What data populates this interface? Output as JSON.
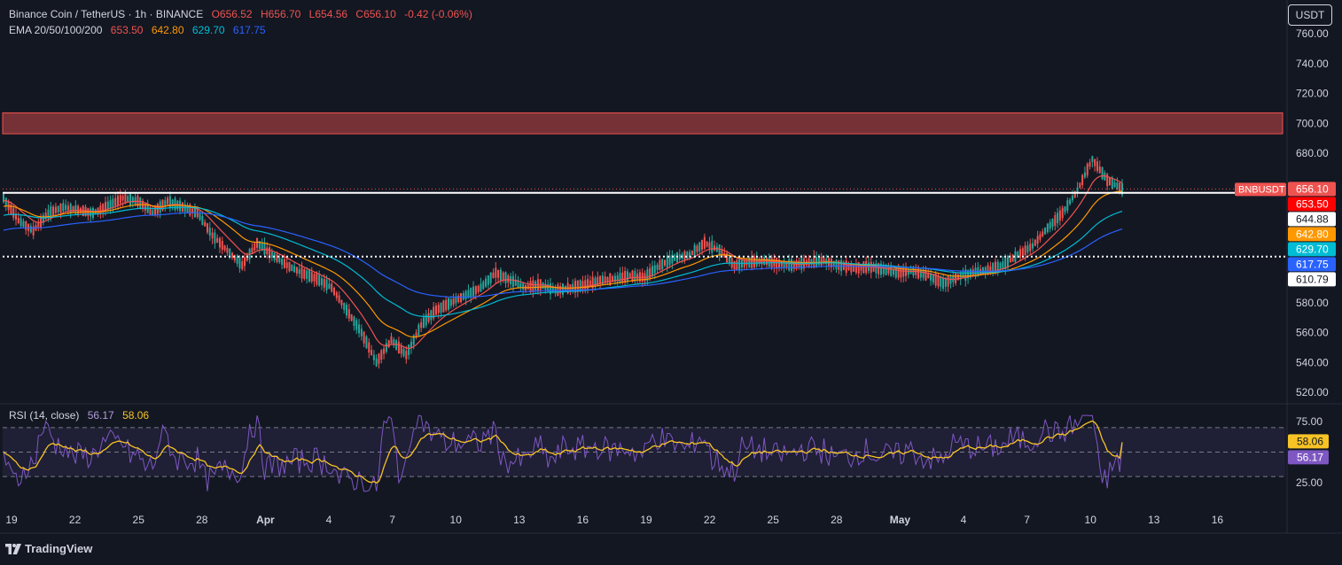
{
  "header": {
    "symbol": "Binance Coin / TetherUS · 1h · BINANCE",
    "open": "O656.52",
    "high": "H656.70",
    "low": "L654.56",
    "close": "C656.10",
    "change": "-0.42 (-0.06%)",
    "ema_label": "EMA 20/50/100/200",
    "ema_values": [
      "653.50",
      "642.80",
      "629.70",
      "617.75"
    ]
  },
  "unit_button": "USDT",
  "rsi_legend": {
    "label": "RSI (14, close)",
    "rsi": "56.17",
    "ma": "58.06"
  },
  "branding": "TradingView",
  "colors": {
    "background": "#131722",
    "up": "#26a69a",
    "down": "#ef5350",
    "ema20": "#ef5350",
    "ema50": "#ff9800",
    "ema100": "#00bcd4",
    "ema200": "#2962ff",
    "rsi": "#7e57c2",
    "rsi_ma": "#f7c325",
    "zone": "#ef5350"
  },
  "chart_data": [
    {
      "type": "candlestick",
      "pair": "BNBUSDT",
      "timeframe": "1h",
      "x_labels": [
        "19",
        "22",
        "25",
        "28",
        "Apr",
        "4",
        "7",
        "10",
        "13",
        "16",
        "19",
        "22",
        "25",
        "28",
        "May",
        "4",
        "7",
        "10",
        "13",
        "16"
      ],
      "y_ticks": [
        520,
        540,
        560,
        580,
        680,
        700,
        720,
        740,
        760
      ],
      "ylim": [
        515,
        765
      ],
      "resistance_zone": [
        693,
        707
      ],
      "horizontal_lines": [
        {
          "value": 653.5,
          "style": "solid",
          "color": "#ffffff"
        },
        {
          "value": 610.79,
          "style": "dotted",
          "color": "#ffffff"
        }
      ],
      "last_price_line": 656.1,
      "price_path": [
        {
          "x": 0,
          "y": 650
        },
        {
          "x": 1,
          "y": 635
        },
        {
          "x": 2,
          "y": 628
        },
        {
          "x": 3,
          "y": 640
        },
        {
          "x": 4,
          "y": 644
        },
        {
          "x": 5,
          "y": 642
        },
        {
          "x": 6,
          "y": 640
        },
        {
          "x": 7,
          "y": 645
        },
        {
          "x": 8,
          "y": 650
        },
        {
          "x": 9,
          "y": 648
        },
        {
          "x": 10,
          "y": 640
        },
        {
          "x": 11,
          "y": 648
        },
        {
          "x": 12,
          "y": 644
        },
        {
          "x": 13,
          "y": 640
        },
        {
          "x": 14,
          "y": 625
        },
        {
          "x": 15,
          "y": 615
        },
        {
          "x": 16,
          "y": 605
        },
        {
          "x": 17,
          "y": 620
        },
        {
          "x": 18,
          "y": 612
        },
        {
          "x": 19,
          "y": 605
        },
        {
          "x": 20,
          "y": 600
        },
        {
          "x": 21,
          "y": 596
        },
        {
          "x": 22,
          "y": 590
        },
        {
          "x": 23,
          "y": 575
        },
        {
          "x": 24,
          "y": 560
        },
        {
          "x": 25,
          "y": 540
        },
        {
          "x": 26,
          "y": 555
        },
        {
          "x": 27,
          "y": 545
        },
        {
          "x": 28,
          "y": 565
        },
        {
          "x": 29,
          "y": 575
        },
        {
          "x": 30,
          "y": 580
        },
        {
          "x": 31,
          "y": 585
        },
        {
          "x": 32,
          "y": 590
        },
        {
          "x": 33,
          "y": 600
        },
        {
          "x": 34,
          "y": 595
        },
        {
          "x": 35,
          "y": 590
        },
        {
          "x": 36,
          "y": 592
        },
        {
          "x": 37,
          "y": 588
        },
        {
          "x": 38,
          "y": 590
        },
        {
          "x": 39,
          "y": 592
        },
        {
          "x": 40,
          "y": 595
        },
        {
          "x": 41,
          "y": 596
        },
        {
          "x": 42,
          "y": 598
        },
        {
          "x": 43,
          "y": 597
        },
        {
          "x": 44,
          "y": 605
        },
        {
          "x": 45,
          "y": 610
        },
        {
          "x": 46,
          "y": 612
        },
        {
          "x": 47,
          "y": 620
        },
        {
          "x": 48,
          "y": 615
        },
        {
          "x": 49,
          "y": 605
        },
        {
          "x": 50,
          "y": 607
        },
        {
          "x": 51,
          "y": 608
        },
        {
          "x": 52,
          "y": 606
        },
        {
          "x": 53,
          "y": 605
        },
        {
          "x": 54,
          "y": 607
        },
        {
          "x": 55,
          "y": 608
        },
        {
          "x": 56,
          "y": 605
        },
        {
          "x": 57,
          "y": 603
        },
        {
          "x": 58,
          "y": 604
        },
        {
          "x": 59,
          "y": 602
        },
        {
          "x": 60,
          "y": 600
        },
        {
          "x": 61,
          "y": 601
        },
        {
          "x": 62,
          "y": 598
        },
        {
          "x": 63,
          "y": 593
        },
        {
          "x": 64,
          "y": 597
        },
        {
          "x": 65,
          "y": 600
        },
        {
          "x": 66,
          "y": 602
        },
        {
          "x": 67,
          "y": 605
        },
        {
          "x": 68,
          "y": 612
        },
        {
          "x": 69,
          "y": 618
        },
        {
          "x": 70,
          "y": 630
        },
        {
          "x": 71,
          "y": 640
        },
        {
          "x": 72,
          "y": 655
        },
        {
          "x": 73,
          "y": 676
        },
        {
          "x": 74,
          "y": 662
        },
        {
          "x": 75,
          "y": 656
        }
      ],
      "price_labels": [
        {
          "text": "BNBUSDT",
          "color": "#ef5350"
        },
        {
          "text": "656.10",
          "color": "#ef5350",
          "value": 656.1
        },
        {
          "text": "653.50",
          "color": "#ff0000",
          "value": 653.5
        },
        {
          "text": "644.88",
          "color": "#ffffff",
          "value": 644.88
        },
        {
          "text": "642.80",
          "color": "#ff9800",
          "value": 642.8
        },
        {
          "text": "629.70",
          "color": "#00bcd4",
          "value": 629.7
        },
        {
          "text": "617.75",
          "color": "#2962ff",
          "value": 617.75
        },
        {
          "text": "610.79",
          "color": "#ffffff",
          "value": 610.79
        }
      ]
    },
    {
      "type": "line",
      "name": "RSI (14, close)",
      "y_ticks": [
        25,
        75
      ],
      "ylim": [
        15,
        82
      ],
      "upper_band": 70,
      "mid_band": 50,
      "lower_band": 30,
      "last_rsi": 56.17,
      "last_ma": 58.06
    }
  ]
}
